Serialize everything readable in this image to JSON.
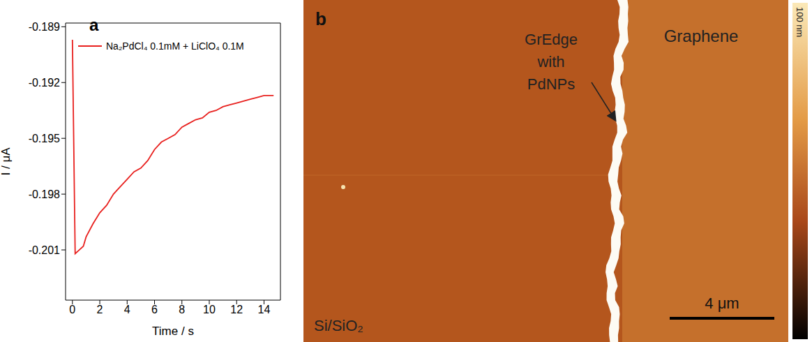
{
  "chart_data": {
    "type": "line",
    "annotations": [
      {
        "text": "a"
      }
    ],
    "x_label": "Time / s",
    "y_label": "I / μA",
    "x": [
      0,
      0.2,
      0.5,
      0.8,
      1,
      1.5,
      2,
      2.5,
      3,
      3.5,
      4,
      4.5,
      5,
      5.5,
      6,
      6.5,
      7,
      7.5,
      8,
      8.5,
      9,
      9.5,
      10,
      10.5,
      11,
      11.5,
      12,
      12.5,
      13,
      13.5,
      14,
      14.7
    ],
    "series": [
      {
        "name": "Na₂PdCl₄ 0.1mM + LiClO₄ 0.1M",
        "color": "#e8201e",
        "values": [
          -0.1897,
          -0.2012,
          -0.201,
          -0.2008,
          -0.2003,
          -0.1996,
          -0.199,
          -0.1986,
          -0.198,
          -0.1976,
          -0.1972,
          -0.1968,
          -0.1966,
          -0.1962,
          -0.1956,
          -0.1952,
          -0.195,
          -0.1948,
          -0.1944,
          -0.1942,
          -0.194,
          -0.1939,
          -0.1936,
          -0.1935,
          -0.1933,
          -0.1932,
          -0.1931,
          -0.193,
          -0.1929,
          -0.1928,
          -0.1927,
          -0.1927
        ]
      }
    ],
    "xlim": [
      -0.5,
      15.2
    ],
    "xticks": [
      0,
      2,
      4,
      6,
      8,
      10,
      12,
      14
    ],
    "ylim": [
      -0.2037,
      -0.1888
    ],
    "yticks": [
      -0.189,
      -0.192,
      -0.195,
      -0.198,
      -0.201
    ],
    "grid": false,
    "legend": "top"
  },
  "afm_image": {
    "panel_label": "b",
    "labels": {
      "edge": "GrEdge with PdNPs",
      "graphene": "Graphene",
      "substrate": "Si/SiO₂"
    },
    "scale_bar": {
      "value": 4,
      "label": "4 μm"
    },
    "colorbar": {
      "range": [
        0,
        100
      ],
      "ticks": [
        {
          "value": 100,
          "label": "100 nm"
        }
      ]
    }
  }
}
